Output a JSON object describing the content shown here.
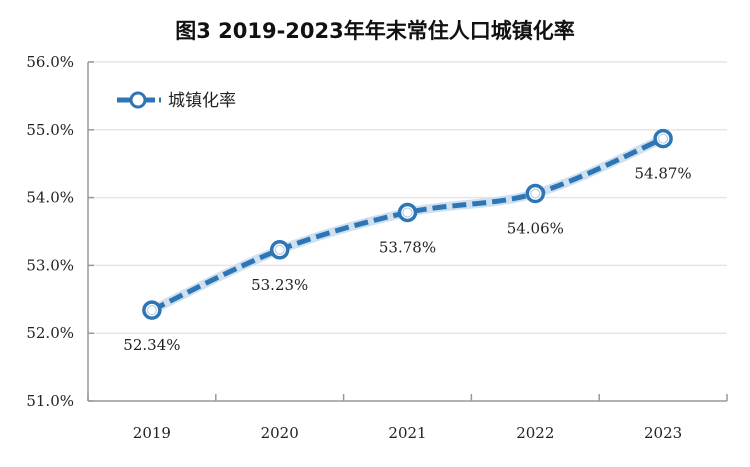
{
  "chart_data": {
    "type": "line",
    "title": "图3 2019-2023年年末常住人口城镇化率",
    "xlabel": "",
    "ylabel": "",
    "categories": [
      "2019",
      "2020",
      "2021",
      "2022",
      "2023"
    ],
    "series": [
      {
        "name": "城镇化率",
        "values": [
          52.34,
          53.23,
          53.78,
          54.06,
          54.87
        ],
        "labels": [
          "52.34%",
          "53.23%",
          "53.78%",
          "54.06%",
          "54.87%"
        ],
        "color": "#2E75B6"
      }
    ],
    "ylim": [
      51,
      56
    ],
    "yticks": [
      "51.0%",
      "52.0%",
      "53.0%",
      "54.0%",
      "55.0%",
      "56.0%"
    ],
    "grid": true,
    "legend": "top-left",
    "line_style": "dashed-smooth"
  }
}
